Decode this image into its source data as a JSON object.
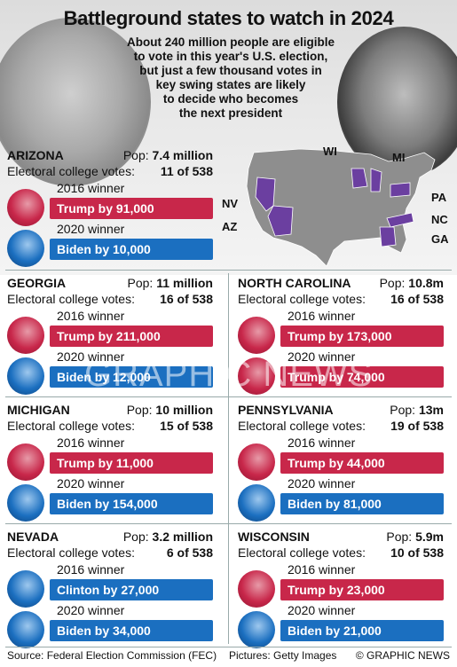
{
  "title": "Battleground states to watch in 2024",
  "intro": [
    "About 240 million people are eligible",
    "to vote in this year's U.S. election,",
    "but just a few thousand votes in",
    "key swing states are likely",
    "to decide who becomes",
    "the next president"
  ],
  "labels": {
    "pop": "Pop:",
    "ec": "Electoral college votes:",
    "y2016": "2016 winner",
    "y2020": "2020 winner"
  },
  "states": [
    {
      "name": "ARIZONA",
      "pop": "7.4 million",
      "ec": "11 of 538",
      "w2016": "Trump by 91,000",
      "w2020": "Biden by 10,000",
      "c2016": "red",
      "c2020": "blue"
    },
    {
      "name": "GEORGIA",
      "pop": "11 million",
      "ec": "16 of 538",
      "w2016": "Trump by 211,000",
      "w2020": "Biden by 12,000",
      "c2016": "red",
      "c2020": "blue"
    },
    {
      "name": "NORTH CAROLINA",
      "pop": "10.8m",
      "ec": "16 of 538",
      "w2016": "Trump by 173,000",
      "w2020": "Trump by 74,000",
      "c2016": "red",
      "c2020": "red"
    },
    {
      "name": "MICHIGAN",
      "pop": "10 million",
      "ec": "15 of 538",
      "w2016": "Trump by 11,000",
      "w2020": "Biden by 154,000",
      "c2016": "red",
      "c2020": "blue"
    },
    {
      "name": "PENNSYLVANIA",
      "pop": "13m",
      "ec": "19 of 538",
      "w2016": "Trump by 44,000",
      "w2020": "Biden by 81,000",
      "c2016": "red",
      "c2020": "blue"
    },
    {
      "name": "NEVADA",
      "pop": "3.2 million",
      "ec": "6 of 538",
      "w2016": "Clinton by 27,000",
      "w2020": "Biden by 34,000",
      "c2016": "blue",
      "c2020": "blue"
    },
    {
      "name": "WISCONSIN",
      "pop": "5.9m",
      "ec": "10 of 538",
      "w2016": "Trump by 23,000",
      "w2020": "Biden by 21,000",
      "c2016": "red",
      "c2020": "blue"
    }
  ],
  "map": {
    "labels": [
      "WI",
      "MI",
      "NV",
      "PA",
      "NC",
      "AZ",
      "GA"
    ]
  },
  "watermark": "GRAPHIC NEWS",
  "footer": {
    "source": "Source: Federal Election Commission (FEC)",
    "pictures": "Pictures: Getty Images",
    "credit": "© GRAPHIC NEWS"
  },
  "colors": {
    "red": "#c8274a",
    "blue": "#1b6fc0",
    "swing": "#6b3fa0",
    "map_base": "#8e8e8e"
  }
}
